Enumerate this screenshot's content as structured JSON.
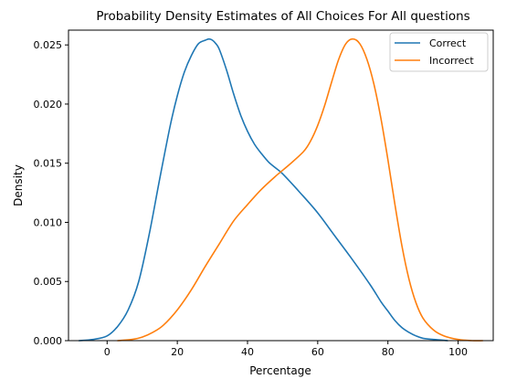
{
  "chart_data": {
    "type": "line",
    "title": "Probability Density Estimates of All Choices For All questions",
    "xlabel": "Percentage",
    "ylabel": "Density",
    "xlim": [
      -11,
      110
    ],
    "ylim": [
      0,
      0.02625
    ],
    "xticks": [
      0,
      20,
      40,
      60,
      80,
      100
    ],
    "xtick_labels": [
      "0",
      "20",
      "40",
      "60",
      "80",
      "100"
    ],
    "yticks": [
      0,
      0.005,
      0.01,
      0.015,
      0.02,
      0.025
    ],
    "ytick_labels": [
      "0.000",
      "0.005",
      "0.010",
      "0.015",
      "0.020",
      "0.025"
    ],
    "grid": false,
    "legend_position": "top-right",
    "series": [
      {
        "name": "Correct",
        "color": "#1f77b4",
        "x": [
          -8,
          -4,
          0,
          3,
          6,
          9,
          12,
          15,
          18,
          20,
          22,
          24,
          26,
          28,
          29,
          30,
          31,
          32,
          34,
          36,
          38,
          40,
          42,
          44,
          46,
          48,
          50,
          55,
          60,
          65,
          70,
          75,
          78,
          80,
          82,
          84,
          86,
          88,
          90,
          93,
          97
        ],
        "y": [
          0.0,
          0.0001,
          0.0004,
          0.0012,
          0.0026,
          0.005,
          0.009,
          0.0137,
          0.0182,
          0.0207,
          0.0227,
          0.0241,
          0.0251,
          0.0254,
          0.0255,
          0.0254,
          0.0251,
          0.0246,
          0.0229,
          0.0209,
          0.0191,
          0.0177,
          0.0166,
          0.0158,
          0.0151,
          0.0146,
          0.0141,
          0.0125,
          0.0108,
          0.0088,
          0.0068,
          0.0047,
          0.0033,
          0.0025,
          0.0017,
          0.0011,
          0.0007,
          0.0004,
          0.0002,
          0.0001,
          0.0
        ]
      },
      {
        "name": "Incorrect",
        "color": "#ff7f0e",
        "x": [
          3,
          7,
          10,
          13,
          16,
          20,
          24,
          28,
          32,
          36,
          40,
          44,
          48,
          52,
          56,
          58,
          60,
          62,
          64,
          66,
          68,
          70,
          72,
          74,
          76,
          78,
          80,
          82,
          84,
          86,
          88,
          90,
          93,
          96,
          100,
          104,
          107
        ],
        "y": [
          0.0,
          0.0001,
          0.0003,
          0.0007,
          0.0013,
          0.0026,
          0.0043,
          0.0063,
          0.0082,
          0.0101,
          0.0115,
          0.0128,
          0.0139,
          0.0149,
          0.016,
          0.0169,
          0.0182,
          0.0199,
          0.0219,
          0.0238,
          0.0251,
          0.0255,
          0.0251,
          0.0238,
          0.0217,
          0.0188,
          0.0153,
          0.0115,
          0.008,
          0.0052,
          0.0032,
          0.0019,
          0.0009,
          0.0004,
          0.0001,
          0.0,
          0.0
        ]
      }
    ]
  }
}
